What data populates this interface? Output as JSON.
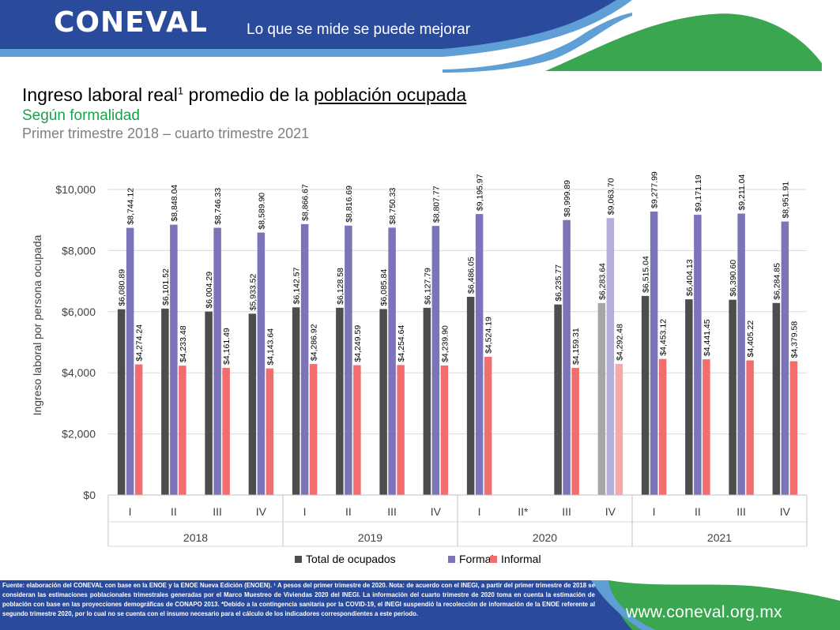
{
  "header": {
    "logo_text": "CONEVAL",
    "tagline": "Lo que se mide se puede mejorar"
  },
  "heading": {
    "title_prefix": "Ingreso laboral real",
    "title_sup": "1",
    "title_mid": " promedio de la ",
    "title_underlined": "población ocupada",
    "subtitle": "Según formalidad",
    "period": "Primer trimestre 2018 – cuarto trimestre 2021"
  },
  "chart_data": {
    "type": "bar",
    "ylabel": "Ingreso laboral por persona ocupada",
    "ylim": [
      0,
      10000
    ],
    "yticks": [
      0,
      2000,
      4000,
      6000,
      8000,
      10000
    ],
    "ytick_labels": [
      "$0",
      "$2,000",
      "$4,000",
      "$6,000",
      "$8,000",
      "$10,000"
    ],
    "grid": true,
    "legend_position": "bottom",
    "categories": [
      "I",
      "II",
      "III",
      "IV",
      "I",
      "II",
      "III",
      "IV",
      "I",
      "II*",
      "III",
      "IV",
      "I",
      "II",
      "III",
      "IV"
    ],
    "groups": [
      {
        "label": "2018",
        "size": 4
      },
      {
        "label": "2019",
        "size": 4
      },
      {
        "label": "2020",
        "size": 4
      },
      {
        "label": "2021",
        "size": 4
      }
    ],
    "series": [
      {
        "name": "Total de ocupados",
        "color": "#4d4d4d",
        "highlight_color": "#a6a6a6",
        "values": [
          6080.89,
          6101.52,
          6004.29,
          5933.52,
          6142.57,
          6128.58,
          6085.84,
          6127.79,
          6486.05,
          null,
          6235.77,
          6283.64,
          6515.04,
          6404.13,
          6390.6,
          6284.85
        ],
        "labels": [
          "$6,080.89",
          "$6,101.52",
          "$6,004.29",
          "$5,933.52",
          "$6,142.57",
          "$6,128.58",
          "$6,085.84",
          "$6,127.79",
          "$6,486.05",
          "",
          "$6,235.77",
          "$6,283.64",
          "$6,515.04",
          "$6,404.13",
          "$6,390.60",
          "$6,284.85"
        ]
      },
      {
        "name": "Formal",
        "color": "#7b74b8",
        "highlight_color": "#b3afd6",
        "values": [
          8744.12,
          8848.04,
          8746.33,
          8589.9,
          8866.67,
          8816.69,
          8750.33,
          8807.77,
          9195.97,
          null,
          8999.89,
          9063.7,
          9277.99,
          9171.19,
          9211.04,
          8951.91
        ],
        "labels": [
          "$8,744.12",
          "$8,848.04",
          "$8,746.33",
          "$8,589.90",
          "$8,866.67",
          "$8,816.69",
          "$8,750.33",
          "$8,807.77",
          "$9,195.97",
          "",
          "$8,999.89",
          "$9,063.70",
          "$9,277.99",
          "$9,171.19",
          "$9,211.04",
          "$8,951.91"
        ]
      },
      {
        "name": "Informal",
        "color": "#f26d6d",
        "highlight_color": "#f7a9a9",
        "values": [
          4274.24,
          4233.48,
          4161.49,
          4143.64,
          4286.92,
          4249.59,
          4254.64,
          4239.9,
          4524.19,
          null,
          4159.31,
          4292.48,
          4453.12,
          4441.45,
          4405.22,
          4379.58
        ],
        "labels": [
          "$4,274.24",
          "$4,233.48",
          "$4,161.49",
          "$4,143.64",
          "$4,286.92",
          "$4,249.59",
          "$4,254.64",
          "$4,239.90",
          "$4,524.19",
          "",
          "$4,159.31",
          "$4,292.48",
          "$4,453.12",
          "$4,441.45",
          "$4,405.22",
          "$4,379.58"
        ]
      }
    ],
    "highlighted_category_index": 11
  },
  "footer": {
    "note": "Fuente: elaboración del CONEVAL con base en la ENOE y la ENOE Nueva Edición (ENOEN). ¹ A pesos del primer trimestre de 2020. Nota: de acuerdo con el INEGI, a partir del primer trimestre de 2018 se consideran las estimaciones poblacionales trimestrales generadas por el Marco Muestreo de Viviendas 2020 del INEGI. La información del cuarto trimestre de 2020 toma en cuenta la estimación de población con base en las proyecciones demográficas de CONAPO 2013. *Debido a la contingencia sanitaria por la COVID-19, el INEGI suspendió la recolección de información de la ENOE referente al segundo trimestre 2020, por lo cual no se cuenta con el insumo necesario para el cálculo de los indicadores correspondientes a este periodo.",
    "url": "www.coneval.org.mx"
  },
  "colors": {
    "header_blue": "#2a4a9c",
    "accent_green": "#3aa64f",
    "subtitle_green": "#1aa24b"
  }
}
